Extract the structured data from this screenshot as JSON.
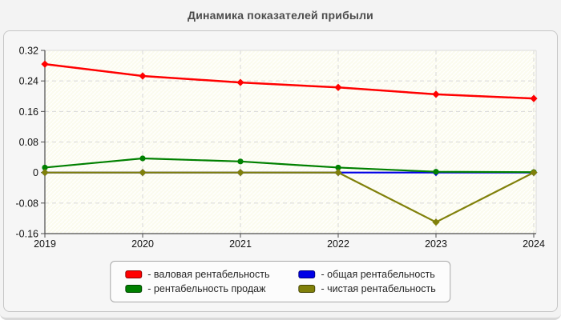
{
  "title": "Динамика показателей прибыли",
  "legend": {
    "items": [
      {
        "label": "- валовая рентабельность",
        "color": "#ff0000"
      },
      {
        "label": "- рентабельность продаж",
        "color": "#008000"
      },
      {
        "label": "- общая рентабельность",
        "color": "#0000e6"
      },
      {
        "label": "- чистая рентабельность",
        "color": "#80800a"
      }
    ]
  },
  "chart_data": {
    "type": "line",
    "title": "Динамика показателей прибыли",
    "categories": [
      "2019",
      "2020",
      "2021",
      "2022",
      "2023",
      "2024"
    ],
    "series": [
      {
        "name": "валовая рентабельность",
        "color": "#ff0000",
        "marker": "diamond",
        "values": [
          0.284,
          0.253,
          0.236,
          0.223,
          0.205,
          0.194
        ]
      },
      {
        "name": "рентабельность продаж",
        "color": "#008000",
        "marker": "circle",
        "values": [
          0.013,
          0.037,
          0.029,
          0.013,
          0.002,
          0.001
        ]
      },
      {
        "name": "общая рентабельность",
        "color": "#0000e6",
        "marker": "diamond",
        "values": [
          0,
          0,
          0,
          0,
          0,
          0
        ]
      },
      {
        "name": "чистая рентабельность",
        "color": "#80800a",
        "marker": "diamond",
        "values": [
          0,
          0,
          0,
          0,
          -0.13,
          0
        ]
      }
    ],
    "draw_order": [
      2,
      1,
      3,
      0
    ],
    "ylim": [
      -0.16,
      0.32
    ],
    "ytick_step": 0.08,
    "ytick_labels": [
      "0.32",
      "0.24",
      "0.16",
      "0.08",
      "0",
      "-0.08",
      "-0.16"
    ],
    "grid": true,
    "legend_position": "bottom"
  },
  "colors": {
    "page_bg": "#f3f3f3",
    "panel_bg": "#f6f6f6",
    "panel_border": "#c6c6c6",
    "plot_bg": "#fbfbee",
    "hatch": "#ffffff",
    "grid": "#d7d7d7",
    "axis": "#4d4d4d",
    "tick_text": "#111111"
  }
}
